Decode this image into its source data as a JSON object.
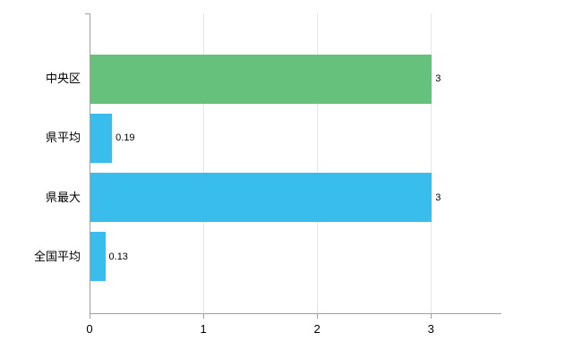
{
  "chart_data": {
    "type": "bar",
    "orientation": "horizontal",
    "title": "",
    "categories": [
      "中央区",
      "県平均",
      "県最大",
      "全国平均"
    ],
    "values": [
      3,
      0.19,
      3,
      0.13
    ],
    "value_labels": [
      "3",
      "0.19",
      "3",
      "0.13"
    ],
    "bar_colors": [
      "#66c17c",
      "#38bdec",
      "#38bdec",
      "#38bdec"
    ],
    "x_ticks": [
      0,
      1,
      2,
      3
    ],
    "x_tick_labels": [
      "0",
      "1",
      "2",
      "3"
    ],
    "xlim": [
      0,
      3.62
    ],
    "grid": "vertical-gridlines-at-ticks",
    "legend": "none",
    "colors": {
      "grid": "#e6e6e6",
      "axis": "#a0a0a0",
      "text": "#000000",
      "background": "#ffffff"
    }
  }
}
